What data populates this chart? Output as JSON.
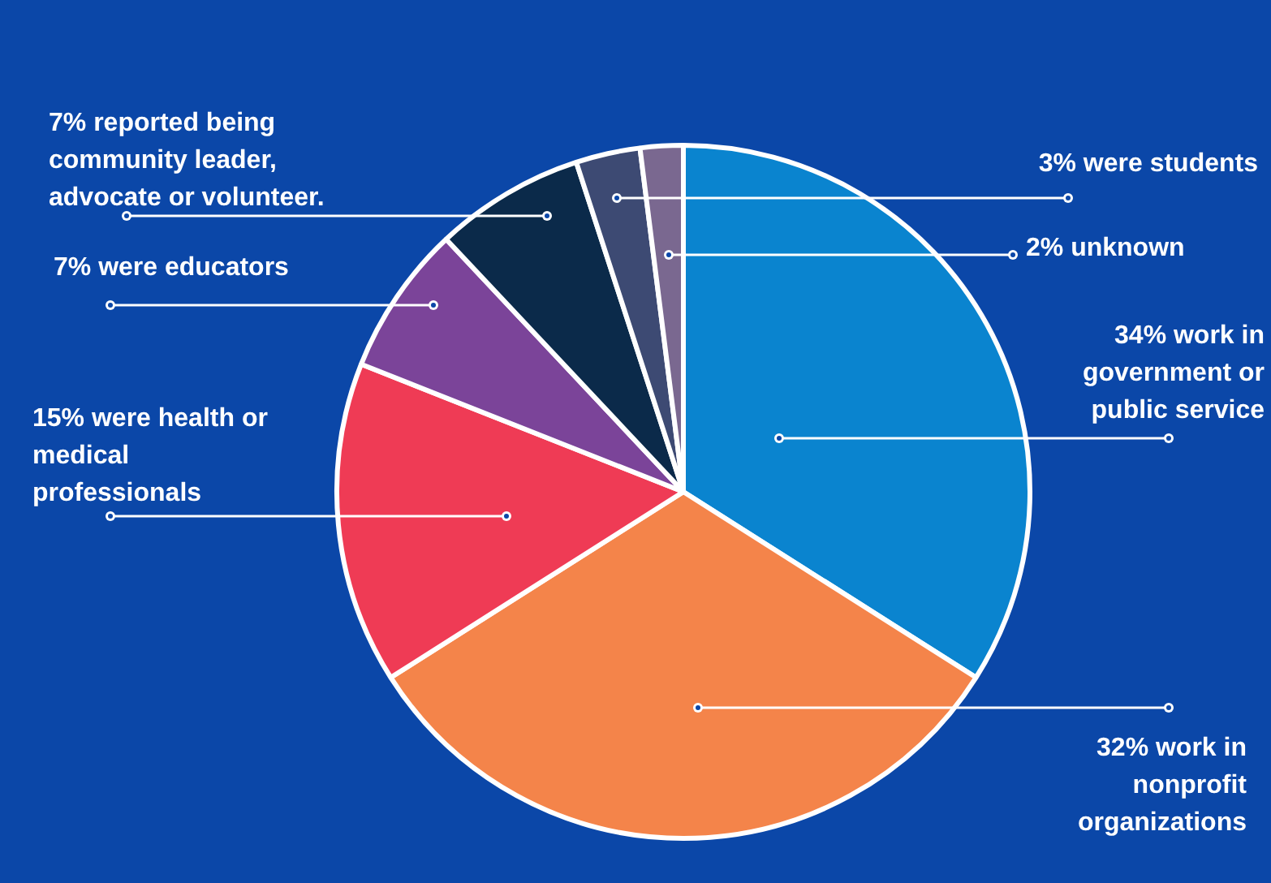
{
  "chart_data": {
    "type": "pie",
    "categories": [
      "34% work in government or public service",
      "32% work in nonprofit organizations",
      "15% were health or medical professionals",
      "7% were educators",
      "7% reported being community leader, advocate or volunteer.",
      "3% were students",
      "2% unknown"
    ],
    "values": [
      34,
      32,
      15,
      7,
      7,
      3,
      2
    ],
    "colors": [
      "#0a84cf",
      "#f4844a",
      "#ef3b55",
      "#7b4499",
      "#0b2a4a",
      "#3d4a73",
      "#7a6890"
    ],
    "legend": false
  }
}
